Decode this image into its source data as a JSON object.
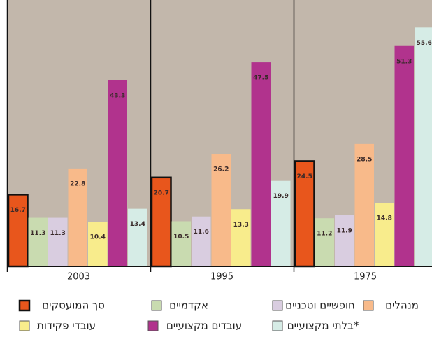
{
  "chart_data": {
    "type": "bar",
    "categories": [
      "2003",
      "1995",
      "1975"
    ],
    "series": [
      {
        "name": "סך המועסקים",
        "color": "#e8561c",
        "values": [
          16.7,
          20.7,
          24.5
        ]
      },
      {
        "name": "אקדמיים",
        "color": "#c9dbb0",
        "values": [
          11.3,
          10.5,
          11.2
        ]
      },
      {
        "name": "חופשיים וטכניים",
        "color": "#d9cde0",
        "values": [
          11.3,
          11.6,
          11.9
        ]
      },
      {
        "name": "מנהלים",
        "color": "#f8ba8a",
        "values": [
          22.8,
          26.2,
          28.5
        ]
      },
      {
        "name": "עובדי פקידות",
        "color": "#f8ec8c",
        "values": [
          10.4,
          13.3,
          14.8
        ]
      },
      {
        "name": "עובדים מקצועיים",
        "color": "#b1338d",
        "values": [
          43.3,
          47.5,
          51.3
        ]
      },
      {
        "name": "בלתי מקצועיים*",
        "color": "#d6ece6",
        "values": [
          13.4,
          19.9,
          55.6
        ]
      }
    ],
    "ylim": [
      0,
      62
    ],
    "background": "#c2b7ab"
  }
}
